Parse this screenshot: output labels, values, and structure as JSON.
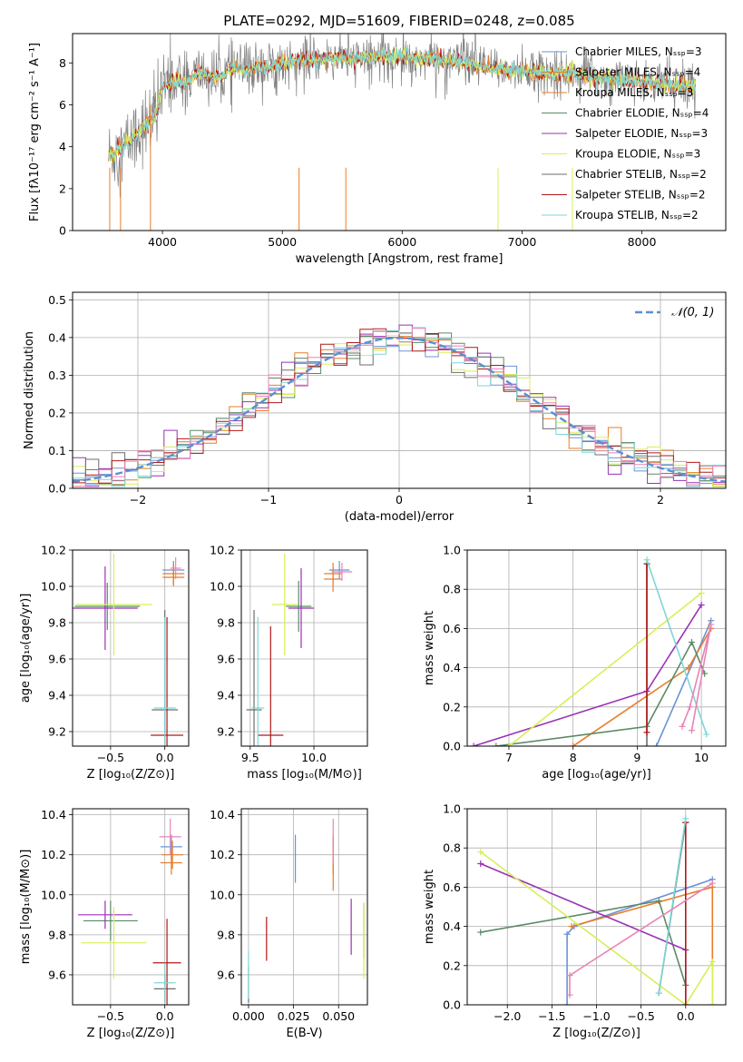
{
  "figure_title": "PLATE=0292, MJD=51609, FIBERID=0248, z=0.085",
  "colors": {
    "series": [
      "#6b93d6",
      "#e87d2a",
      "#e87d2a",
      "#5b8a65",
      "#9b30b5",
      "#d7ef58",
      "#6d6d6d",
      "#b21818",
      "#7fd6d6"
    ],
    "pink": "#e884b5",
    "grey": "#808080",
    "dashed_normal": "#5b8fd6"
  },
  "chart_data": [
    {
      "id": "spectrum",
      "type": "line",
      "title": "PLATE=0292, MJD=51609, FIBERID=0248, z=0.085",
      "xlabel": "wavelength [Angstrom, rest frame]",
      "ylabel": "Flux [fλ10⁻¹⁷ erg cm⁻² s⁻¹ A⁻¹]",
      "xlim": [
        3250,
        8700
      ],
      "ylim": [
        0,
        9.4
      ],
      "xticks": [
        "4000",
        "5000",
        "6000",
        "7000",
        "8000"
      ],
      "yticks": [
        "0",
        "2",
        "4",
        "6",
        "8"
      ],
      "legend_position": "top-right",
      "legend": [
        "Chabrier MILES, Nₛₛₚ=3",
        "Salpeter MILES, Nₛₛₚ=4",
        "Kroupa MILES, Nₛₛₚ=3",
        "Chabrier ELODIE, Nₛₛₚ=4",
        "Salpeter ELODIE, Nₛₛₚ=3",
        "Kroupa ELODIE, Nₛₛₚ=3",
        "Chabrier STELIB, Nₛₛₚ=2",
        "Salpeter STELIB, Nₛₛₚ=2",
        "Kroupa STELIB, Nₛₛₚ=2"
      ],
      "model_curve": {
        "x": [
          3550,
          3650,
          3750,
          3850,
          3950,
          4000,
          4100,
          4200,
          4300,
          4400,
          4500,
          4600,
          4700,
          4800,
          4900,
          5000,
          5200,
          5400,
          5600,
          5800,
          6000,
          6200,
          6400,
          6600,
          6800,
          7000,
          7200,
          7400,
          7600,
          7800,
          8000,
          8200,
          8450
        ],
        "y": [
          3.6,
          3.9,
          4.4,
          5.0,
          5.6,
          6.8,
          7.2,
          7.0,
          7.6,
          7.3,
          7.4,
          7.8,
          7.6,
          7.9,
          7.8,
          8.0,
          8.1,
          8.2,
          8.2,
          8.3,
          8.3,
          8.2,
          8.1,
          7.9,
          7.7,
          7.6,
          7.5,
          7.5,
          7.3,
          7.2,
          7.1,
          7.0,
          6.9
        ]
      },
      "data_range_x": [
        3550,
        8450
      ]
    },
    {
      "id": "residuals",
      "type": "line",
      "xlabel": "(data-model)/error",
      "ylabel": "Normed distribution",
      "xlim": [
        -2.5,
        2.5
      ],
      "ylim": [
        0,
        0.52
      ],
      "xticks": [
        "−2",
        "−1",
        "0",
        "1",
        "2"
      ],
      "yticks": [
        "0.0",
        "0.1",
        "0.2",
        "0.3",
        "0.4",
        "0.5"
      ],
      "legend": [
        "𝒩(0, 1)"
      ],
      "legend_position": "top-right",
      "normal_mean": 0,
      "normal_sigma": 1,
      "bin_width": 0.1
    },
    {
      "id": "age-vs-Z",
      "type": "scatter",
      "xlabel": "Z [log₁₀(Z/Z⊙)]",
      "ylabel": "age  [log₁₀(age/yr)]",
      "xlim": [
        -0.85,
        0.22
      ],
      "ylim": [
        9.12,
        10.2
      ],
      "xticks": [
        "−0.5",
        "0.0"
      ],
      "yticks": [
        "9.2",
        "9.4",
        "9.6",
        "9.8",
        "10.0",
        "10.2"
      ],
      "points": [
        {
          "x": 0.08,
          "y": 10.09,
          "xerr": 0.1,
          "yerr": 0.05,
          "color": 0
        },
        {
          "x": 0.08,
          "y": 10.05,
          "xerr": 0.1,
          "yerr": 0.05,
          "color": 1
        },
        {
          "x": 0.08,
          "y": 10.07,
          "xerr": 0.1,
          "yerr": 0.06,
          "color": 2
        },
        {
          "x": -0.53,
          "y": 9.89,
          "xerr": 0.3,
          "yerr": 0.13,
          "color": 3
        },
        {
          "x": -0.55,
          "y": 9.88,
          "xerr": 0.3,
          "yerr": 0.23,
          "color": 4
        },
        {
          "x": -0.47,
          "y": 9.9,
          "xerr": 0.35,
          "yerr": 0.28,
          "color": 5
        },
        {
          "x": 0.0,
          "y": 9.32,
          "xerr": 0.12,
          "yerr": 0.55,
          "color": 6
        },
        {
          "x": 0.02,
          "y": 9.18,
          "xerr": 0.15,
          "yerr": 0.65,
          "color": 7
        },
        {
          "x": 0.0,
          "y": 9.33,
          "xerr": 0.1,
          "yerr": 0.5,
          "color": 8
        },
        {
          "x": 0.1,
          "y": 10.1,
          "xerr": 0.05,
          "yerr": 0.06,
          "color": "pink"
        }
      ]
    },
    {
      "id": "age-vs-mass",
      "type": "scatter",
      "xlabel": "mass [log₁₀(M/M⊙)]",
      "ylabel": "",
      "xlim": [
        9.43,
        10.42
      ],
      "ylim": [
        9.12,
        10.2
      ],
      "xticks": [
        "9.5",
        "10.0"
      ],
      "yticks": [
        "9.2",
        "9.4",
        "9.6",
        "9.8",
        "10.0",
        "10.2"
      ],
      "points": [
        {
          "x": 10.2,
          "y": 10.09,
          "xerr": 0.08,
          "yerr": 0.05,
          "color": 0
        },
        {
          "x": 10.15,
          "y": 10.04,
          "xerr": 0.07,
          "yerr": 0.07,
          "color": 1
        },
        {
          "x": 10.15,
          "y": 10.07,
          "xerr": 0.07,
          "yerr": 0.06,
          "color": 2
        },
        {
          "x": 9.88,
          "y": 9.89,
          "xerr": 0.1,
          "yerr": 0.14,
          "color": 3
        },
        {
          "x": 9.9,
          "y": 9.88,
          "xerr": 0.1,
          "yerr": 0.22,
          "color": 4
        },
        {
          "x": 9.77,
          "y": 9.9,
          "xerr": 0.1,
          "yerr": 0.28,
          "color": 5
        },
        {
          "x": 9.53,
          "y": 9.32,
          "xerr": 0.06,
          "yerr": 0.55,
          "color": 6
        },
        {
          "x": 9.66,
          "y": 9.18,
          "xerr": 0.1,
          "yerr": 0.6,
          "color": 7
        },
        {
          "x": 9.56,
          "y": 9.33,
          "xerr": 0.05,
          "yerr": 0.5,
          "color": 8
        },
        {
          "x": 10.22,
          "y": 10.08,
          "xerr": 0.08,
          "yerr": 0.05,
          "color": "pink"
        }
      ]
    },
    {
      "id": "weight-vs-age",
      "type": "line",
      "xlabel": "age  [log₁₀(age/yr)]",
      "ylabel": "mass weight",
      "xlim": [
        6.35,
        10.38
      ],
      "ylim": [
        0,
        1.0
      ],
      "xticks": [
        "7",
        "8",
        "9",
        "10"
      ],
      "yticks": [
        "0.0",
        "0.2",
        "0.4",
        "0.6",
        "0.8",
        "1.0"
      ],
      "series": [
        {
          "color": 0,
          "x": [
            9.3,
            10.15
          ],
          "y": [
            0.0,
            0.64
          ]
        },
        {
          "color": 1,
          "x": [
            8.0,
            9.8,
            10.15
          ],
          "y": [
            0.0,
            0.4,
            0.6
          ]
        },
        {
          "color": 3,
          "x": [
            6.8,
            9.15,
            9.85,
            10.05
          ],
          "y": [
            0.0,
            0.1,
            0.53,
            0.37
          ]
        },
        {
          "color": 4,
          "x": [
            6.45,
            9.15,
            10.0
          ],
          "y": [
            0.0,
            0.28,
            0.72
          ]
        },
        {
          "color": 5,
          "x": [
            7.0,
            10.0
          ],
          "y": [
            0.0,
            0.78
          ]
        },
        {
          "color": 6,
          "x": [
            9.15,
            9.15
          ],
          "y": [
            0.0,
            0.93
          ]
        },
        {
          "color": 7,
          "x": [
            9.15,
            9.15
          ],
          "y": [
            0.07,
            0.93
          ]
        },
        {
          "color": 8,
          "x": [
            9.15,
            10.08
          ],
          "y": [
            0.95,
            0.06
          ]
        },
        {
          "color": "pink",
          "x": [
            9.7,
            9.82,
            10.15,
            9.85
          ],
          "y": [
            0.1,
            0.2,
            0.62,
            0.08
          ]
        }
      ]
    },
    {
      "id": "mass-vs-Z",
      "type": "scatter",
      "xlabel": "Z [log₁₀(Z/Z⊙)]",
      "ylabel": "mass [log₁₀(M/M⊙)]",
      "xlim": [
        -0.85,
        0.22
      ],
      "ylim": [
        9.45,
        10.43
      ],
      "xticks": [
        "−0.5",
        "0.0"
      ],
      "yticks": [
        "9.6",
        "9.8",
        "10.0",
        "10.2",
        "10.4"
      ],
      "points": [
        {
          "x": 0.06,
          "y": 10.24,
          "xerr": 0.1,
          "yerr": 0.06,
          "color": 0
        },
        {
          "x": 0.06,
          "y": 10.16,
          "xerr": 0.1,
          "yerr": 0.06,
          "color": 1
        },
        {
          "x": 0.07,
          "y": 10.2,
          "xerr": 0.1,
          "yerr": 0.07,
          "color": 2
        },
        {
          "x": -0.5,
          "y": 9.87,
          "xerr": 0.25,
          "yerr": 0.1,
          "color": 3
        },
        {
          "x": -0.55,
          "y": 9.9,
          "xerr": 0.25,
          "yerr": 0.07,
          "color": 4
        },
        {
          "x": -0.47,
          "y": 9.76,
          "xerr": 0.3,
          "yerr": 0.18,
          "color": 5
        },
        {
          "x": 0.0,
          "y": 9.53,
          "xerr": 0.1,
          "yerr": 0.07,
          "color": 6
        },
        {
          "x": 0.02,
          "y": 9.66,
          "xerr": 0.13,
          "yerr": 0.22,
          "color": 7
        },
        {
          "x": 0.0,
          "y": 9.56,
          "xerr": 0.1,
          "yerr": 0.1,
          "color": 8
        },
        {
          "x": 0.05,
          "y": 10.29,
          "xerr": 0.1,
          "yerr": 0.09,
          "color": "pink"
        }
      ]
    },
    {
      "id": "mass-vs-EBV",
      "type": "scatter",
      "xlabel": "E(B-V)",
      "ylabel": "",
      "xlim": [
        -0.004,
        0.066
      ],
      "ylim": [
        9.45,
        10.43
      ],
      "xticks": [
        "0.000",
        "0.025",
        "0.050"
      ],
      "yticks": [
        "9.6",
        "9.8",
        "10.0",
        "10.2",
        "10.4"
      ],
      "points": [
        {
          "x": 0.026,
          "y": 10.18,
          "yerr": 0.12,
          "color": 0
        },
        {
          "x": 0.047,
          "y": 10.15,
          "yerr": 0.13,
          "color": 1
        },
        {
          "x": 0.047,
          "y": 10.2,
          "yerr": 0.1,
          "color": 2
        },
        {
          "x": 0.064,
          "y": 9.82,
          "yerr": 0.14,
          "color": 3
        },
        {
          "x": 0.057,
          "y": 9.84,
          "yerr": 0.14,
          "color": 4
        },
        {
          "x": 0.064,
          "y": 9.77,
          "yerr": 0.19,
          "color": 5
        },
        {
          "x": 0.0,
          "y": 9.55,
          "yerr": 0.09,
          "color": 6
        },
        {
          "x": 0.01,
          "y": 9.78,
          "yerr": 0.11,
          "color": 7
        },
        {
          "x": 0.0,
          "y": 9.6,
          "yerr": 0.12,
          "color": 8
        },
        {
          "x": 0.047,
          "y": 10.27,
          "yerr": 0.11,
          "color": "pink"
        }
      ]
    },
    {
      "id": "weight-vs-Z",
      "type": "line",
      "xlabel": "Z [log₁₀(Z/Z⊙)]",
      "ylabel": "mass weight",
      "xlim": [
        -2.45,
        0.45
      ],
      "ylim": [
        0,
        1.0
      ],
      "xticks": [
        "−2.0",
        "−1.5",
        "−1.0",
        "−0.5",
        "0.0"
      ],
      "yticks": [
        "0.0",
        "0.2",
        "0.4",
        "0.6",
        "0.8",
        "1.0"
      ],
      "series": [
        {
          "color": 0,
          "x": [
            -1.33,
            -1.33,
            -1.25,
            0.3
          ],
          "y": [
            0.0,
            0.36,
            0.4,
            0.64
          ]
        },
        {
          "color": 1,
          "x": [
            -1.28,
            0.3,
            0.3
          ],
          "y": [
            0.4,
            0.6,
            0.0
          ]
        },
        {
          "color": 3,
          "x": [
            -2.3,
            -0.3,
            0.0
          ],
          "y": [
            0.37,
            0.53,
            0.1
          ]
        },
        {
          "color": 4,
          "x": [
            -2.3,
            0.0,
            0.0
          ],
          "y": [
            0.72,
            0.28,
            0.0
          ]
        },
        {
          "color": 5,
          "x": [
            -2.3,
            0.0,
            0.3,
            0.3
          ],
          "y": [
            0.78,
            0.0,
            0.22,
            0.0
          ]
        },
        {
          "color": 6,
          "x": [
            -0.3,
            0.0
          ],
          "y": [
            0.06,
            0.93
          ]
        },
        {
          "color": 7,
          "x": [
            0.0,
            0.0
          ],
          "y": [
            0.0,
            0.93
          ]
        },
        {
          "color": 8,
          "x": [
            -0.3,
            0.0
          ],
          "y": [
            0.06,
            0.95
          ]
        },
        {
          "color": "pink",
          "x": [
            -1.3,
            -1.3,
            0.3
          ],
          "y": [
            0.05,
            0.15,
            0.62
          ]
        }
      ]
    }
  ]
}
